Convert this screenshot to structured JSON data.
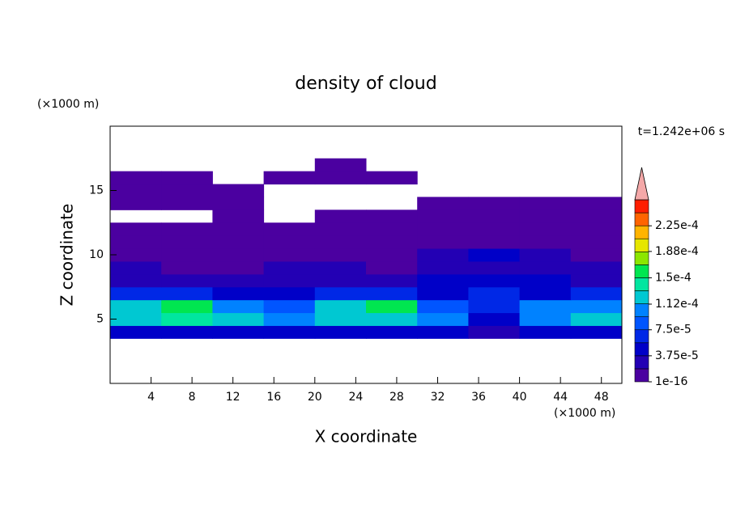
{
  "chart_data": {
    "type": "contour",
    "title": "density of cloud",
    "subtitle": "t=1.242e+06 s",
    "x_label": "X coordinate",
    "y_label": "Z coordinate",
    "x_unit": "(×1000 m)",
    "y_unit": "(×1000 m)",
    "xlim": [
      0,
      50
    ],
    "ylim": [
      0,
      20
    ],
    "xticks": [
      4,
      8,
      12,
      16,
      20,
      24,
      28,
      32,
      36,
      40,
      44,
      48
    ],
    "yticks": [
      5,
      10,
      15
    ],
    "x": [
      2.5,
      7.5,
      12.5,
      17.5,
      22.5,
      27.5,
      32.5,
      37.5,
      42.5,
      47.5
    ],
    "y": [
      4,
      5,
      6,
      7,
      8,
      9,
      10,
      11,
      12,
      13,
      14,
      15,
      16,
      17
    ],
    "values": [
      [
        5e-05,
        5e-05,
        4e-05,
        4e-05,
        5e-05,
        5e-05,
        4e-05,
        3e-05,
        5e-05,
        5e-05
      ],
      [
        0.00013,
        0.00014,
        0.00012,
        0.00011,
        0.00013,
        0.00013,
        0.00011,
        5e-05,
        0.00011,
        0.00012
      ],
      [
        0.00012,
        0.00016,
        0.00011,
        8e-05,
        0.00013,
        0.00015,
        9e-05,
        7e-05,
        0.0001,
        0.00011
      ],
      [
        6e-05,
        7e-05,
        5e-05,
        4e-05,
        6e-05,
        7e-05,
        5e-05,
        6e-05,
        5e-05,
        6e-05
      ],
      [
        3e-05,
        2e-05,
        3e-05,
        3e-05,
        3e-05,
        3e-05,
        4e-05,
        4e-05,
        4e-05,
        3e-05
      ],
      [
        2e-05,
        1e-06,
        1e-05,
        2e-05,
        2e-05,
        1e-05,
        2e-05,
        3e-05,
        3e-05,
        2e-05
      ],
      [
        1e-05,
        1e-06,
        1e-06,
        1e-05,
        1e-05,
        1e-06,
        2e-05,
        4e-05,
        2e-05,
        1e-05
      ],
      [
        1e-06,
        1e-06,
        1e-06,
        1e-06,
        1e-06,
        1e-06,
        1e-06,
        1e-06,
        1e-06,
        1e-06
      ],
      [
        1e-06,
        1e-06,
        1e-06,
        1e-06,
        1e-06,
        1e-06,
        1e-06,
        1e-06,
        1e-06,
        1e-06
      ],
      [
        null,
        null,
        1e-06,
        null,
        1e-06,
        1e-06,
        1e-06,
        1e-06,
        1e-06,
        1e-06
      ],
      [
        1e-06,
        1e-06,
        1e-06,
        null,
        null,
        null,
        1e-06,
        1e-06,
        1e-06,
        1e-06
      ],
      [
        1e-06,
        1e-06,
        1e-06,
        null,
        null,
        null,
        null,
        null,
        null,
        null
      ],
      [
        1e-06,
        1e-06,
        null,
        1e-06,
        1e-06,
        1e-06,
        null,
        null,
        null,
        null
      ],
      [
        null,
        null,
        null,
        null,
        1e-06,
        null,
        null,
        null,
        null,
        null
      ]
    ],
    "levels": [
      1e-16,
      1.875e-05,
      3.75e-05,
      5.625e-05,
      7.5e-05,
      9.375e-05,
      0.0001125,
      0.00013125,
      0.00015,
      0.00016875,
      0.0001875,
      0.00020625,
      0.000225,
      0.00024375,
      0.0002625
    ],
    "colors": [
      "#4b00a0",
      "#2300b4",
      "#0000c8",
      "#0028e6",
      "#0055ff",
      "#0082ff",
      "#00c8d2",
      "#00e6a0",
      "#00e650",
      "#8ce600",
      "#e6e600",
      "#ffb400",
      "#ff6400",
      "#ff1e00"
    ],
    "extend_color": "#f4a8a8",
    "cticks": [
      {
        "value": 1e-16,
        "label": "1e-16"
      },
      {
        "value": 3.75e-05,
        "label": "3.75e-5"
      },
      {
        "value": 7.5e-05,
        "label": "7.5e-5"
      },
      {
        "value": 0.000112,
        "label": "1.12e-4"
      },
      {
        "value": 0.00015,
        "label": "1.5e-4"
      },
      {
        "value": 0.000188,
        "label": "1.88e-4"
      },
      {
        "value": 0.000225,
        "label": "2.25e-4"
      }
    ]
  }
}
